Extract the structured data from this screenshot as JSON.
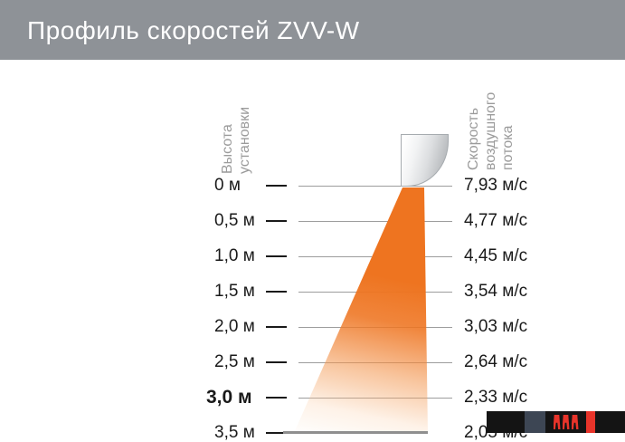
{
  "header": {
    "title": "Профиль скоростей ZVV-W"
  },
  "left_axis": {
    "title_line1": "Высота",
    "title_line2": "установки"
  },
  "right_axis": {
    "title_line1": "Скорость",
    "title_line2": "воздушного",
    "title_line3": "потока"
  },
  "chart_data": {
    "type": "table",
    "title": "Профиль скоростей ZVV-W",
    "columns": [
      "Высота установки",
      "Скорость воздушного потока"
    ],
    "categories": [
      "0 м",
      "0,5 м",
      "1,0 м",
      "1,5 м",
      "2,0 м",
      "2,5 м",
      "3,0 м",
      "3,5 м"
    ],
    "heights_m": [
      0,
      0.5,
      1.0,
      1.5,
      2.0,
      2.5,
      3.0,
      3.5
    ],
    "velocities_m_s": [
      7.93,
      4.77,
      4.45,
      3.54,
      3.03,
      2.64,
      2.33,
      2.05
    ],
    "highlighted_category": "3,0 м",
    "legend_position": "none",
    "grid": "horizontal-row-lines",
    "rows": [
      {
        "height": "0 м",
        "velocity": "7,93 м/с",
        "bold": false
      },
      {
        "height": "0,5 м",
        "velocity": "4,77 м/с",
        "bold": false
      },
      {
        "height": "1,0 м",
        "velocity": "4,45 м/с",
        "bold": false
      },
      {
        "height": "1,5 м",
        "velocity": "3,54 м/с",
        "bold": false
      },
      {
        "height": "2,0 м",
        "velocity": "3,03 м/с",
        "bold": false
      },
      {
        "height": "2,5 м",
        "velocity": "2,64 м/с",
        "bold": false
      },
      {
        "height": "3,0 м",
        "velocity": "2,33 м/с",
        "bold": true
      },
      {
        "height": "3,5 м",
        "velocity": "2,05 м/с",
        "bold": false
      }
    ]
  },
  "colors": {
    "header_bg": "#8e9297",
    "cone_orange": "#ee7420",
    "axis_gray": "#9b9b9b",
    "logo_slate": "#3d4654",
    "logo_red": "#e8342a"
  },
  "logo": {
    "description": "brand logo block bottom-right",
    "segments": [
      "black-block",
      "slate-block",
      "black-block-with-red-glyphs",
      "red-block",
      "black-block"
    ]
  }
}
